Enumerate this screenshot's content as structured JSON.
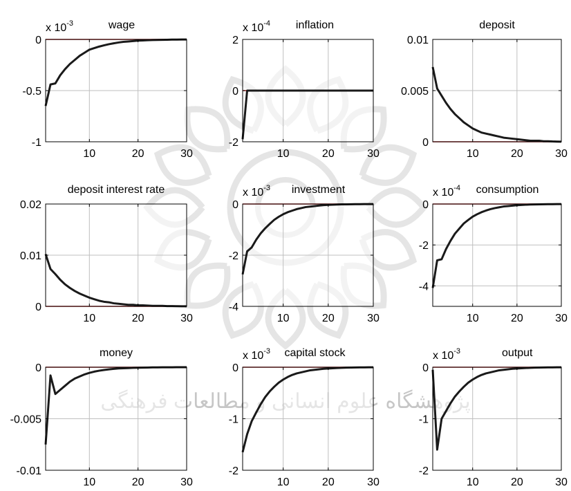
{
  "chart_data": [
    {
      "type": "line",
      "title": "wage",
      "exponent_base": "x 10",
      "exponent": "-3",
      "x": [
        1,
        2,
        3,
        4,
        5,
        6,
        7,
        8,
        9,
        10,
        11,
        12,
        13,
        14,
        15,
        16,
        17,
        18,
        19,
        20,
        21,
        22,
        23,
        24,
        25,
        26,
        27,
        28,
        29,
        30
      ],
      "series": [
        {
          "values": [
            -0.65,
            -0.44,
            -0.43,
            -0.35,
            -0.29,
            -0.24,
            -0.2,
            -0.16,
            -0.13,
            -0.1,
            -0.085,
            -0.07,
            -0.058,
            -0.047,
            -0.038,
            -0.03,
            -0.024,
            -0.02,
            -0.016,
            -0.012,
            -0.01,
            -0.008,
            -0.006,
            -0.005,
            -0.004,
            -0.003,
            -0.002,
            -0.002,
            -0.001,
            -0.001
          ]
        }
      ],
      "xlim": [
        1,
        30
      ],
      "ylim": [
        -1,
        0
      ],
      "xticks": [
        "10",
        "20",
        "30"
      ],
      "xtick_values": [
        10,
        20,
        30
      ],
      "yticks": [
        "-1",
        "-0.5",
        "0"
      ],
      "ytick_values": [
        -1,
        -0.5,
        0
      ],
      "grid": true,
      "zero_line": true
    },
    {
      "type": "line",
      "title": "inflation",
      "exponent_base": "x 10",
      "exponent": "-4",
      "x": [
        1,
        2,
        3,
        4,
        5,
        6,
        7,
        8,
        9,
        10,
        11,
        12,
        13,
        14,
        15,
        16,
        17,
        18,
        19,
        20,
        21,
        22,
        23,
        24,
        25,
        26,
        27,
        28,
        29,
        30
      ],
      "series": [
        {
          "values": [
            -1.9,
            0,
            0,
            0,
            0,
            0,
            0,
            0,
            0,
            0,
            0,
            0,
            0,
            0,
            0,
            0,
            0,
            0,
            0,
            0,
            0,
            0,
            0,
            0,
            0,
            0,
            0,
            0,
            0,
            0
          ]
        }
      ],
      "xlim": [
        1,
        30
      ],
      "ylim": [
        -2,
        2
      ],
      "xticks": [
        "10",
        "20",
        "30"
      ],
      "xtick_values": [
        10,
        20,
        30
      ],
      "yticks": [
        "-2",
        "0",
        "2"
      ],
      "ytick_values": [
        -2,
        0,
        2
      ],
      "grid": true,
      "zero_line": true
    },
    {
      "type": "line",
      "title": "deposit",
      "exponent_base": "",
      "exponent": "",
      "x": [
        1,
        2,
        3,
        4,
        5,
        6,
        7,
        8,
        9,
        10,
        11,
        12,
        13,
        14,
        15,
        16,
        17,
        18,
        19,
        20,
        21,
        22,
        23,
        24,
        25,
        26,
        27,
        28,
        29,
        30
      ],
      "series": [
        {
          "values": [
            0.0073,
            0.0052,
            0.0045,
            0.0038,
            0.0032,
            0.0027,
            0.0023,
            0.0019,
            0.0016,
            0.0013,
            0.0011,
            0.0009,
            0.0008,
            0.0007,
            0.0006,
            0.0005,
            0.0004,
            0.00035,
            0.0003,
            0.00025,
            0.0002,
            0.00015,
            0.0001,
            0.0001,
            0.0001,
            5e-05,
            5e-05,
            3e-05,
            2e-05,
            1e-05
          ]
        }
      ],
      "xlim": [
        1,
        30
      ],
      "ylim": [
        0,
        0.01
      ],
      "xticks": [
        "10",
        "20",
        "30"
      ],
      "xtick_values": [
        10,
        20,
        30
      ],
      "yticks": [
        "0",
        "0.005",
        "0.01"
      ],
      "ytick_values": [
        0,
        0.005,
        0.01
      ],
      "grid": true,
      "zero_line": true
    },
    {
      "type": "line",
      "title": "deposit interest rate",
      "exponent_base": "",
      "exponent": "",
      "x": [
        1,
        2,
        3,
        4,
        5,
        6,
        7,
        8,
        9,
        10,
        11,
        12,
        13,
        14,
        15,
        16,
        17,
        18,
        19,
        20,
        21,
        22,
        23,
        24,
        25,
        26,
        27,
        28,
        29,
        30
      ],
      "series": [
        {
          "values": [
            0.0102,
            0.0073,
            0.0063,
            0.0052,
            0.0043,
            0.0036,
            0.003,
            0.0025,
            0.0021,
            0.0017,
            0.0014,
            0.0011,
            0.0009,
            0.0008,
            0.0006,
            0.0005,
            0.0004,
            0.0003,
            0.0003,
            0.0002,
            0.0002,
            0.00015,
            0.0001,
            0.0001,
            0.0001,
            5e-05,
            5e-05,
            3e-05,
            2e-05,
            1e-05
          ]
        }
      ],
      "xlim": [
        1,
        30
      ],
      "ylim": [
        0,
        0.02
      ],
      "xticks": [
        "10",
        "20",
        "30"
      ],
      "xtick_values": [
        10,
        20,
        30
      ],
      "yticks": [
        "0",
        "0.01",
        "0.02"
      ],
      "ytick_values": [
        0,
        0.01,
        0.02
      ],
      "grid": true,
      "zero_line": true
    },
    {
      "type": "line",
      "title": "investment",
      "exponent_base": "x 10",
      "exponent": "-3",
      "x": [
        1,
        2,
        3,
        4,
        5,
        6,
        7,
        8,
        9,
        10,
        11,
        12,
        13,
        14,
        15,
        16,
        17,
        18,
        19,
        20,
        21,
        22,
        23,
        24,
        25,
        26,
        27,
        28,
        29,
        30
      ],
      "series": [
        {
          "values": [
            -2.75,
            -1.85,
            -1.7,
            -1.4,
            -1.15,
            -0.95,
            -0.78,
            -0.62,
            -0.5,
            -0.4,
            -0.32,
            -0.26,
            -0.2,
            -0.16,
            -0.12,
            -0.1,
            -0.08,
            -0.06,
            -0.045,
            -0.035,
            -0.027,
            -0.02,
            -0.015,
            -0.012,
            -0.009,
            -0.007,
            -0.005,
            -0.004,
            -0.003,
            -0.002
          ]
        }
      ],
      "xlim": [
        1,
        30
      ],
      "ylim": [
        -4,
        0
      ],
      "xticks": [
        "10",
        "20",
        "30"
      ],
      "xtick_values": [
        10,
        20,
        30
      ],
      "yticks": [
        "-4",
        "-2",
        "0"
      ],
      "ytick_values": [
        -4,
        -2,
        0
      ],
      "grid": true,
      "zero_line": true
    },
    {
      "type": "line",
      "title": "consumption",
      "exponent_base": "x 10",
      "exponent": "-4",
      "x": [
        1,
        2,
        3,
        4,
        5,
        6,
        7,
        8,
        9,
        10,
        11,
        12,
        13,
        14,
        15,
        16,
        17,
        18,
        19,
        20,
        21,
        22,
        23,
        24,
        25,
        26,
        27,
        28,
        29,
        30
      ],
      "series": [
        {
          "values": [
            -4.1,
            -2.75,
            -2.7,
            -2.2,
            -1.8,
            -1.45,
            -1.2,
            -0.95,
            -0.78,
            -0.62,
            -0.5,
            -0.4,
            -0.32,
            -0.25,
            -0.2,
            -0.16,
            -0.12,
            -0.1,
            -0.08,
            -0.06,
            -0.045,
            -0.035,
            -0.027,
            -0.02,
            -0.015,
            -0.012,
            -0.009,
            -0.007,
            -0.005,
            -0.004
          ]
        }
      ],
      "xlim": [
        1,
        30
      ],
      "ylim": [
        -5,
        0
      ],
      "xticks": [
        "10",
        "20",
        "30"
      ],
      "xtick_values": [
        10,
        20,
        30
      ],
      "yticks": [
        "-4",
        "-2",
        "0"
      ],
      "ytick_values": [
        -4,
        -2,
        0
      ],
      "grid": true,
      "zero_line": true
    },
    {
      "type": "line",
      "title": "money",
      "exponent_base": "",
      "exponent": "",
      "x": [
        1,
        2,
        3,
        4,
        5,
        6,
        7,
        8,
        9,
        10,
        11,
        12,
        13,
        14,
        15,
        16,
        17,
        18,
        19,
        20,
        21,
        22,
        23,
        24,
        25,
        26,
        27,
        28,
        29,
        30
      ],
      "series": [
        {
          "values": [
            -0.0075,
            -0.0008,
            -0.0026,
            -0.0022,
            -0.0018,
            -0.0014,
            -0.0011,
            -0.0009,
            -0.0007,
            -0.00055,
            -0.00043,
            -0.00034,
            -0.00027,
            -0.00021,
            -0.00016,
            -0.00012,
            -0.0001,
            -8e-05,
            -6e-05,
            -5e-05,
            -4e-05,
            -3e-05,
            -2e-05,
            -2e-05,
            -1e-05,
            -1e-05,
            -1e-05,
            0,
            0,
            0
          ]
        }
      ],
      "xlim": [
        1,
        30
      ],
      "ylim": [
        -0.01,
        0
      ],
      "xticks": [
        "10",
        "20",
        "30"
      ],
      "xtick_values": [
        10,
        20,
        30
      ],
      "yticks": [
        "-0.01",
        "-0.005",
        "0"
      ],
      "ytick_values": [
        -0.01,
        -0.005,
        0
      ],
      "grid": true,
      "zero_line": true
    },
    {
      "type": "line",
      "title": "capital stock",
      "exponent_base": "x 10",
      "exponent": "-3",
      "x": [
        1,
        2,
        3,
        4,
        5,
        6,
        7,
        8,
        9,
        10,
        11,
        12,
        13,
        14,
        15,
        16,
        17,
        18,
        19,
        20,
        21,
        22,
        23,
        24,
        25,
        26,
        27,
        28,
        29,
        30
      ],
      "series": [
        {
          "values": [
            -1.65,
            -1.3,
            -1.05,
            -0.88,
            -0.72,
            -0.58,
            -0.47,
            -0.38,
            -0.3,
            -0.24,
            -0.19,
            -0.15,
            -0.12,
            -0.1,
            -0.08,
            -0.06,
            -0.05,
            -0.04,
            -0.03,
            -0.025,
            -0.02,
            -0.015,
            -0.012,
            -0.009,
            -0.007,
            -0.005,
            -0.004,
            -0.003,
            -0.002,
            -0.002
          ]
        }
      ],
      "xlim": [
        1,
        30
      ],
      "ylim": [
        -2,
        0
      ],
      "xticks": [
        "10",
        "20",
        "30"
      ],
      "xtick_values": [
        10,
        20,
        30
      ],
      "yticks": [
        "-2",
        "-1",
        "0"
      ],
      "ytick_values": [
        -2,
        -1,
        0
      ],
      "grid": true,
      "zero_line": true
    },
    {
      "type": "line",
      "title": "output",
      "exponent_base": "x 10",
      "exponent": "-3",
      "x": [
        1,
        2,
        3,
        4,
        5,
        6,
        7,
        8,
        9,
        10,
        11,
        12,
        13,
        14,
        15,
        16,
        17,
        18,
        19,
        20,
        21,
        22,
        23,
        24,
        25,
        26,
        27,
        28,
        29,
        30
      ],
      "series": [
        {
          "values": [
            -0.05,
            -1.6,
            -1.0,
            -0.85,
            -0.7,
            -0.57,
            -0.47,
            -0.38,
            -0.3,
            -0.24,
            -0.19,
            -0.15,
            -0.12,
            -0.1,
            -0.08,
            -0.06,
            -0.05,
            -0.04,
            -0.03,
            -0.025,
            -0.02,
            -0.015,
            -0.012,
            -0.009,
            -0.007,
            -0.005,
            -0.004,
            -0.003,
            -0.002,
            -0.002
          ]
        }
      ],
      "xlim": [
        1,
        30
      ],
      "ylim": [
        -2,
        0
      ],
      "xticks": [
        "10",
        "20",
        "30"
      ],
      "xtick_values": [
        10,
        20,
        30
      ],
      "yticks": [
        "-2",
        "-1",
        "0"
      ],
      "ytick_values": [
        -2,
        -1,
        0
      ],
      "grid": true,
      "zero_line": true
    }
  ],
  "colors": {
    "series_line": "#1a1a1a",
    "zero_line": "#cc2222",
    "grid": "#bfbfbf",
    "axes": "#000000",
    "watermark": "#8c8c8c"
  },
  "watermark": {
    "icon": "islamic-star-rosette-icon",
    "text": "پژوهشگاه علوم انسانی و مطالعات فرهنگی"
  }
}
